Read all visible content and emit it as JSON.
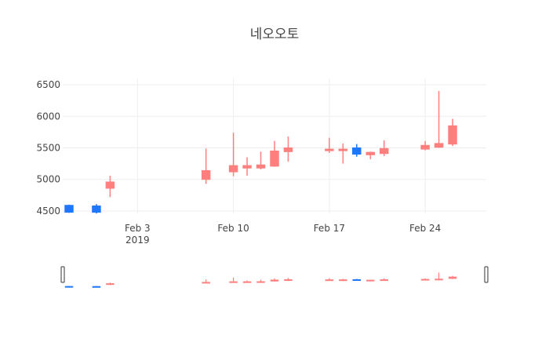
{
  "chart_data": {
    "type": "candlestick",
    "title": "네오오토",
    "xlabel": "",
    "ylabel": "",
    "ylim": [
      4450,
      6550
    ],
    "x_range": [
      "2019-01-29",
      "2019-02-28"
    ],
    "yticks": [
      4500,
      5000,
      5500,
      6000,
      6500
    ],
    "xticks": [
      {
        "date": "2019-02-03",
        "label": "Feb 3",
        "sublabel": "2019"
      },
      {
        "date": "2019-02-10",
        "label": "Feb 10",
        "sublabel": ""
      },
      {
        "date": "2019-02-17",
        "label": "Feb 17",
        "sublabel": ""
      },
      {
        "date": "2019-02-24",
        "label": "Feb 24",
        "sublabel": ""
      }
    ],
    "grid": true,
    "rangeslider": true,
    "colors": {
      "increasing": "#ff7f7f",
      "decreasing": "#1f77ff"
    },
    "candles": [
      {
        "date": "2019-01-29",
        "open": 4590,
        "high": 4600,
        "low": 4470,
        "close": 4480
      },
      {
        "date": "2019-01-31",
        "open": 4580,
        "high": 4610,
        "low": 4460,
        "close": 4480
      },
      {
        "date": "2019-02-01",
        "open": 4860,
        "high": 5060,
        "low": 4720,
        "close": 4960
      },
      {
        "date": "2019-02-08",
        "open": 5000,
        "high": 5490,
        "low": 4930,
        "close": 5140
      },
      {
        "date": "2019-02-10",
        "open": 5120,
        "high": 5740,
        "low": 5050,
        "close": 5220
      },
      {
        "date": "2019-02-11",
        "open": 5180,
        "high": 5350,
        "low": 5060,
        "close": 5220
      },
      {
        "date": "2019-02-12",
        "open": 5180,
        "high": 5440,
        "low": 5160,
        "close": 5230
      },
      {
        "date": "2019-02-13",
        "open": 5210,
        "high": 5610,
        "low": 5200,
        "close": 5450
      },
      {
        "date": "2019-02-14",
        "open": 5440,
        "high": 5680,
        "low": 5280,
        "close": 5500
      },
      {
        "date": "2019-02-17",
        "open": 5460,
        "high": 5660,
        "low": 5420,
        "close": 5480
      },
      {
        "date": "2019-02-18",
        "open": 5460,
        "high": 5570,
        "low": 5250,
        "close": 5480
      },
      {
        "date": "2019-02-19",
        "open": 5500,
        "high": 5560,
        "low": 5360,
        "close": 5400
      },
      {
        "date": "2019-02-20",
        "open": 5390,
        "high": 5440,
        "low": 5320,
        "close": 5430
      },
      {
        "date": "2019-02-21",
        "open": 5410,
        "high": 5620,
        "low": 5370,
        "close": 5490
      },
      {
        "date": "2019-02-24",
        "open": 5480,
        "high": 5610,
        "low": 5460,
        "close": 5540
      },
      {
        "date": "2019-02-25",
        "open": 5510,
        "high": 6400,
        "low": 5500,
        "close": 5570
      },
      {
        "date": "2019-02-26",
        "open": 5560,
        "high": 5960,
        "low": 5530,
        "close": 5850
      }
    ]
  }
}
